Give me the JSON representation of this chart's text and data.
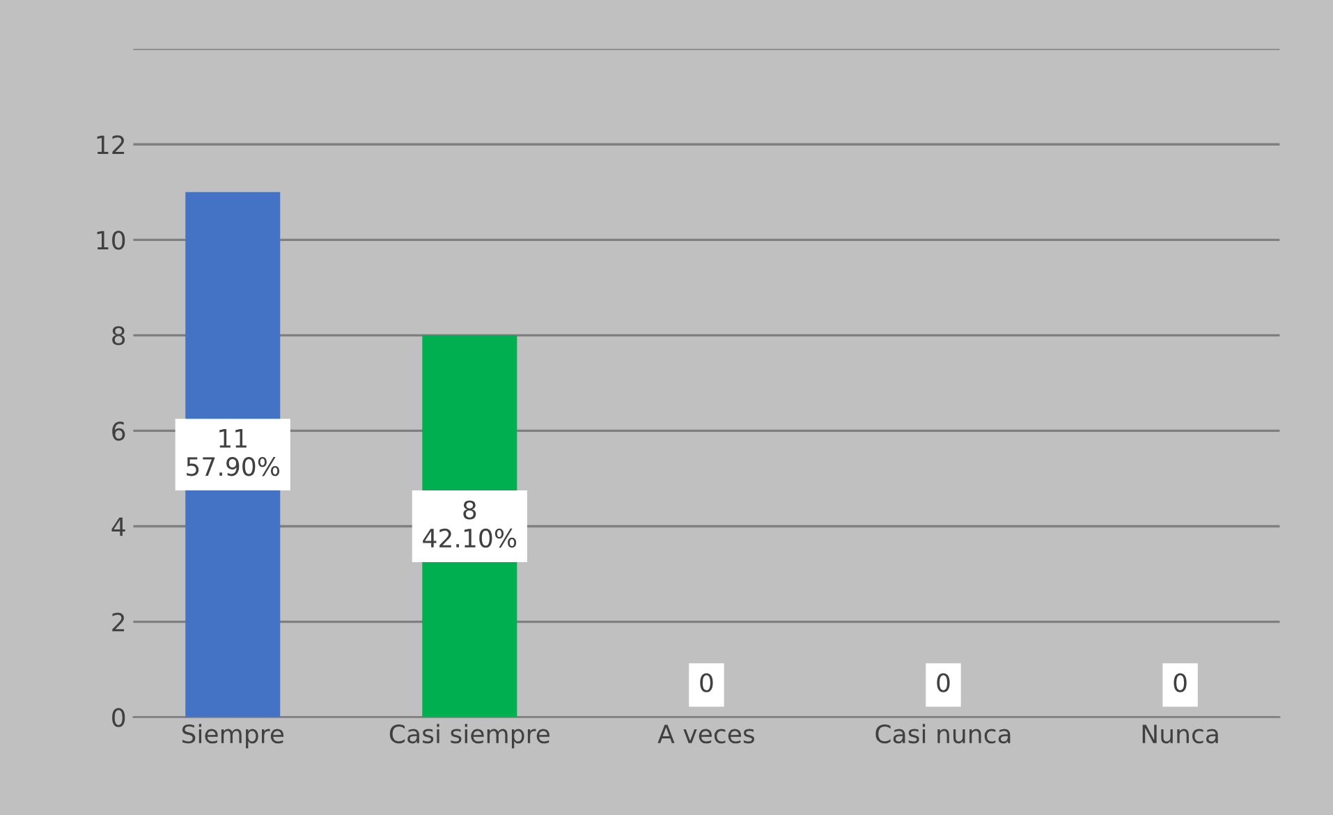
{
  "chart_data": {
    "type": "bar",
    "categories": [
      "Siempre",
      "Casi siempre",
      "A veces",
      "Casi nunca",
      "Nunca"
    ],
    "values": [
      11,
      8,
      0,
      0,
      0
    ],
    "colors": [
      "#4472c4",
      "#00b050",
      "#808080",
      "#808080",
      "#808080"
    ],
    "value_labels": [
      "11\n57.90%",
      "8\n42.10%",
      "0",
      "0",
      "0"
    ],
    "ylim": [
      0,
      14
    ],
    "yticks": [
      0,
      2,
      4,
      6,
      8,
      10,
      12,
      {
        "value": 14,
        "label": null
      }
    ],
    "grid": "y"
  }
}
